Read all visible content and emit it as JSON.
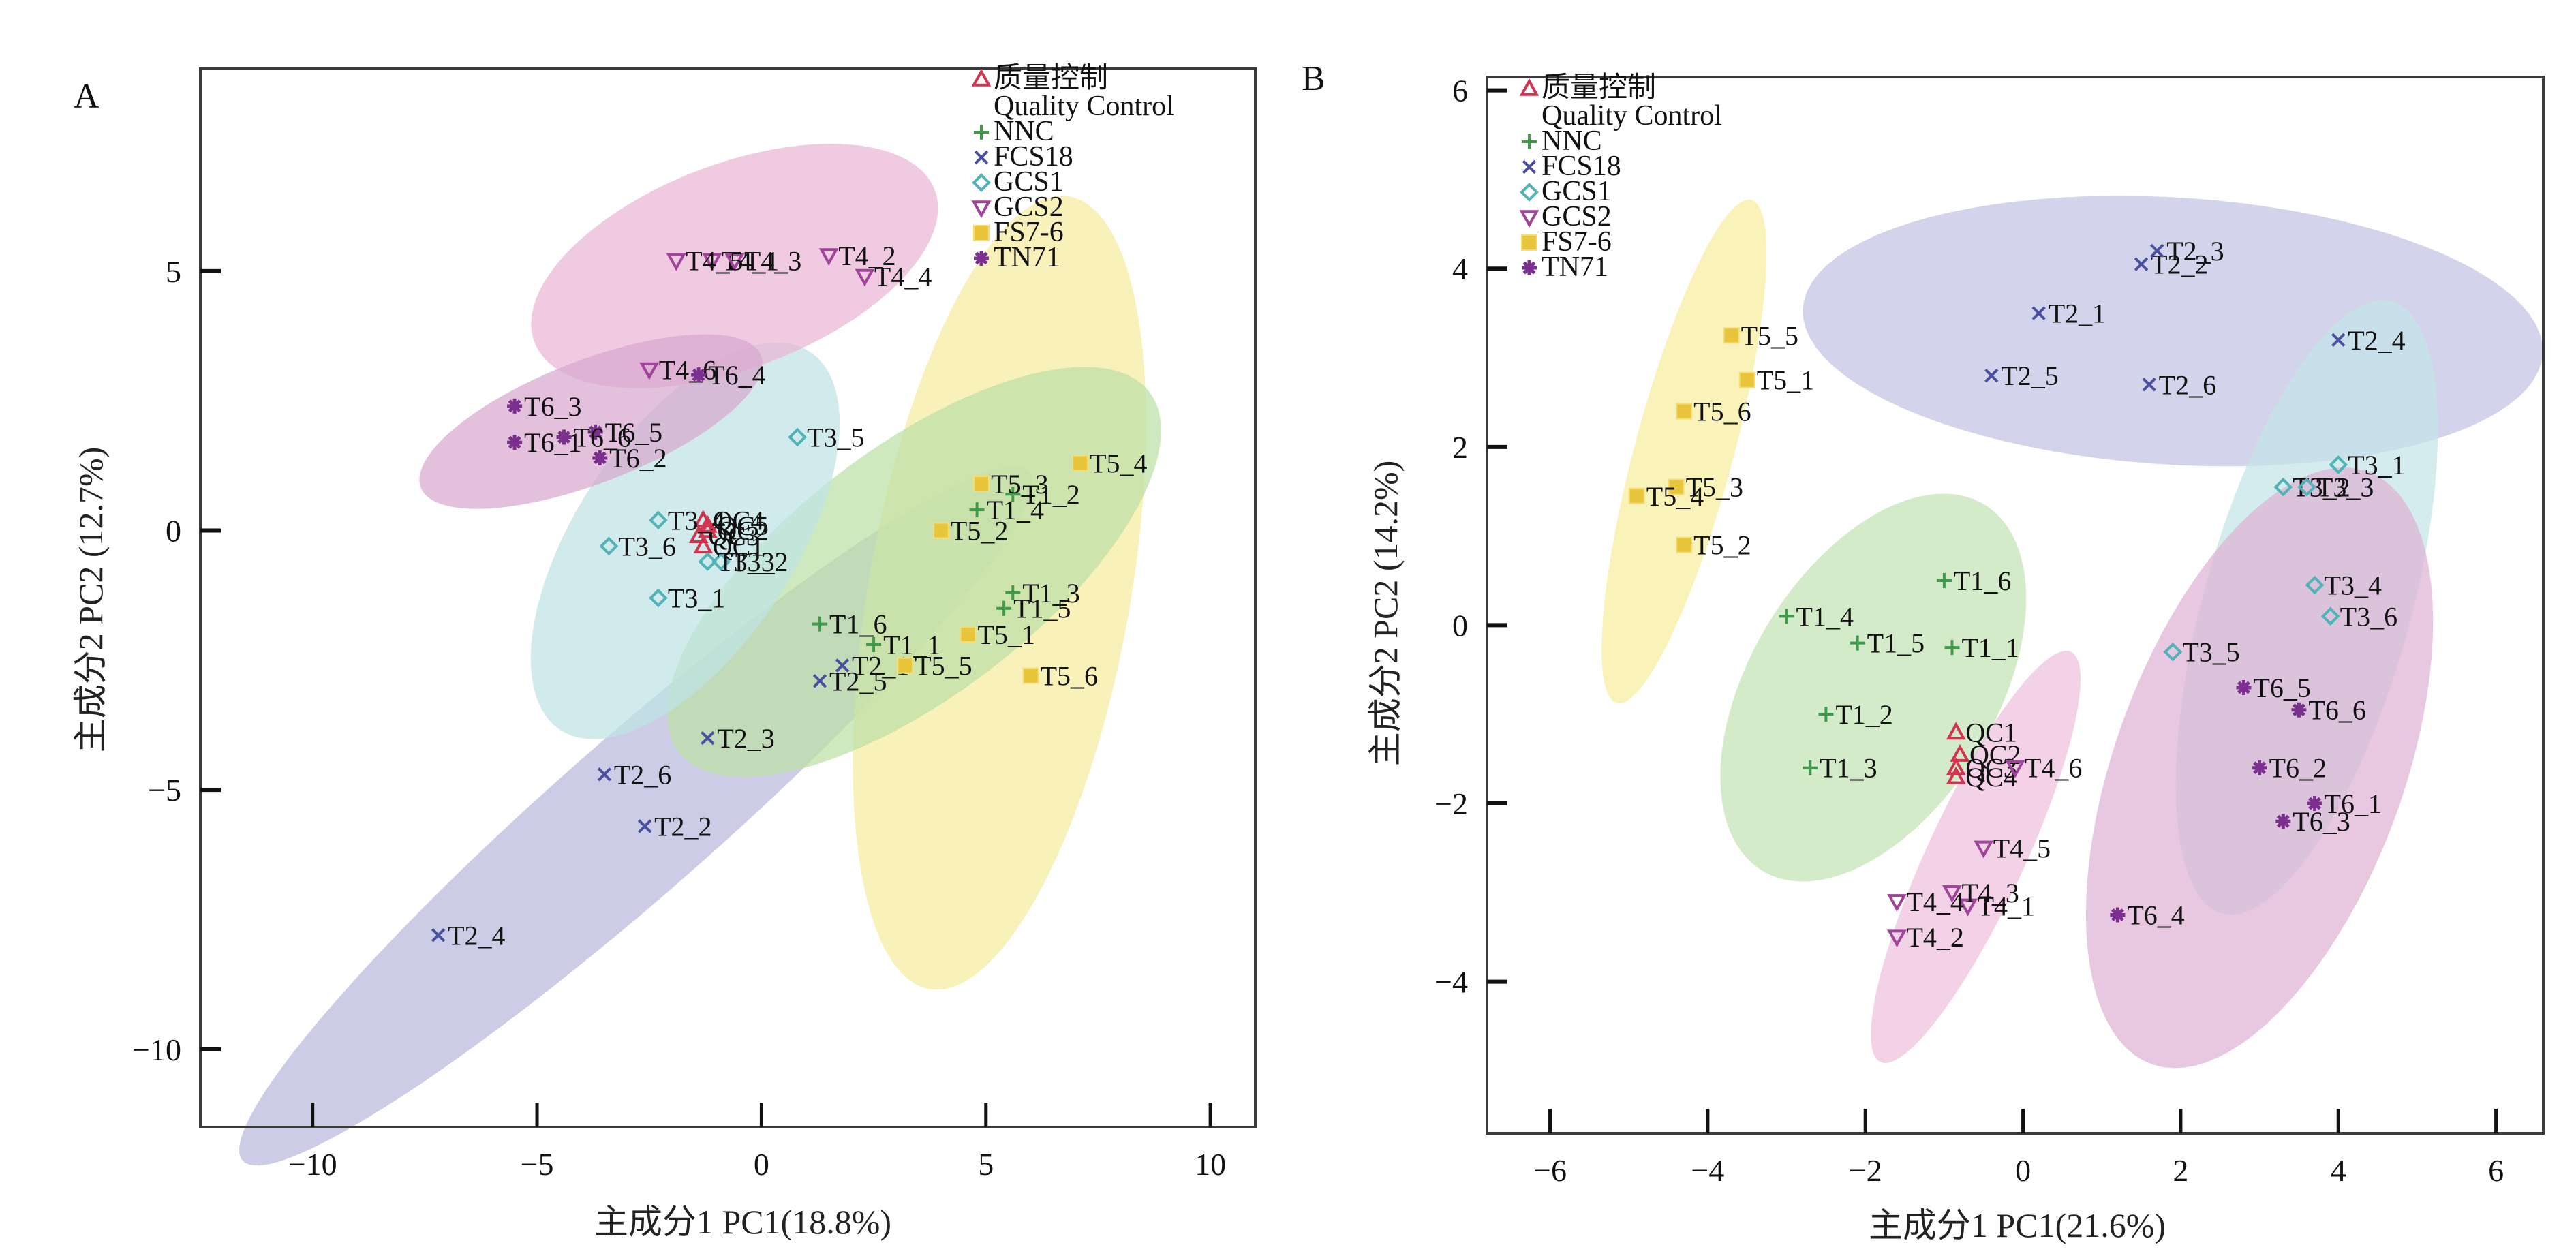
{
  "chart_data": [
    {
      "panel": "A",
      "type": "scatter",
      "title": "",
      "xlabel": "主成分1 PC1(18.8%)",
      "ylabel": "主成分2 PC2 (12.7%)",
      "xlim": [
        -12.5,
        11.0
      ],
      "ylim": [
        -11.5,
        8.9
      ],
      "xticks": [
        -10,
        -5,
        0,
        5,
        10
      ],
      "xtick_labels": [
        "−10",
        "−5",
        "0",
        "5",
        "10"
      ],
      "yticks": [
        5,
        0,
        -5,
        -10
      ],
      "ytick_labels": [
        "5",
        "0",
        "−5",
        "−10"
      ],
      "grid": false,
      "legend_position": "top-right",
      "series": [
        {
          "name": "质量控制 Quality Control",
          "marker": "triangle-up",
          "color": "#d0344f",
          "points": [
            {
              "label": "QC1",
              "x": -1.3,
              "y": -0.3
            },
            {
              "label": "QC2",
              "x": -1.2,
              "y": 0.0
            },
            {
              "label": "QC3",
              "x": -1.4,
              "y": -0.1
            },
            {
              "label": "QC4",
              "x": -1.3,
              "y": 0.2
            },
            {
              "label": "QC5",
              "x": -1.2,
              "y": 0.1
            }
          ]
        },
        {
          "name": "NNC",
          "marker": "plus",
          "color": "#3f9a4a",
          "points": [
            {
              "label": "T1_1",
              "x": 2.5,
              "y": -2.2
            },
            {
              "label": "T1_2",
              "x": 5.6,
              "y": 0.7
            },
            {
              "label": "T1_3",
              "x": 5.6,
              "y": -1.2
            },
            {
              "label": "T1_4",
              "x": 4.8,
              "y": 0.4
            },
            {
              "label": "T1_5",
              "x": 5.4,
              "y": -1.5
            },
            {
              "label": "T1_6",
              "x": 1.3,
              "y": -1.8
            }
          ]
        },
        {
          "name": "FCS18",
          "marker": "x",
          "color": "#4a4fa0",
          "points": [
            {
              "label": "T2_1",
              "x": 1.8,
              "y": -2.6
            },
            {
              "label": "T2_2",
              "x": -2.6,
              "y": -5.7
            },
            {
              "label": "T2_3",
              "x": -1.2,
              "y": -4.0
            },
            {
              "label": "T2_4",
              "x": -7.2,
              "y": -7.8
            },
            {
              "label": "T2_5",
              "x": 1.3,
              "y": -2.9
            },
            {
              "label": "T2_6",
              "x": -3.5,
              "y": -4.7
            }
          ]
        },
        {
          "name": "GCS1",
          "marker": "diamond",
          "color": "#4fb3b8",
          "points": [
            {
              "label": "T3_1",
              "x": -2.3,
              "y": -1.3
            },
            {
              "label": "T3_2",
              "x": -0.9,
              "y": -0.6
            },
            {
              "label": "T3_3",
              "x": -1.2,
              "y": -0.6
            },
            {
              "label": "T3_4",
              "x": -2.3,
              "y": 0.2
            },
            {
              "label": "T3_5",
              "x": 0.8,
              "y": 1.8
            },
            {
              "label": "T3_6",
              "x": -3.4,
              "y": -0.3
            }
          ]
        },
        {
          "name": "GCS2",
          "marker": "triangle-down",
          "color": "#a0449a",
          "points": [
            {
              "label": "T4_1",
              "x": -1.1,
              "y": 5.2
            },
            {
              "label": "T4_2",
              "x": 1.5,
              "y": 5.3
            },
            {
              "label": "T4_3",
              "x": -0.6,
              "y": 5.2
            },
            {
              "label": "T4_4",
              "x": 2.3,
              "y": 4.9
            },
            {
              "label": "T4_5",
              "x": -1.9,
              "y": 5.2
            },
            {
              "label": "T4_6",
              "x": -2.5,
              "y": 3.1
            }
          ]
        },
        {
          "name": "FS7-6",
          "marker": "square",
          "color": "#e8c53a",
          "points": [
            {
              "label": "T5_1",
              "x": 4.6,
              "y": -2.0
            },
            {
              "label": "T5_2",
              "x": 4.0,
              "y": 0.0
            },
            {
              "label": "T5_3",
              "x": 4.9,
              "y": 0.9
            },
            {
              "label": "T5_4",
              "x": 7.1,
              "y": 1.3
            },
            {
              "label": "T5_5",
              "x": 3.2,
              "y": -2.6
            },
            {
              "label": "T5_6",
              "x": 6.0,
              "y": -2.8
            }
          ]
        },
        {
          "name": "TN71",
          "marker": "star",
          "color": "#7b2f8e",
          "points": [
            {
              "label": "T6_1",
              "x": -5.5,
              "y": 1.7
            },
            {
              "label": "T6_2",
              "x": -3.6,
              "y": 1.4
            },
            {
              "label": "T6_3",
              "x": -5.5,
              "y": 2.4
            },
            {
              "label": "T6_4",
              "x": -1.4,
              "y": 3.0
            },
            {
              "label": "T6_5",
              "x": -3.7,
              "y": 1.9
            },
            {
              "label": "T6_6",
              "x": -4.4,
              "y": 1.8
            }
          ]
        }
      ],
      "ellipses": [
        {
          "group": "FCS18",
          "cx": -2.8,
          "cy": -5.5,
          "rx": 11.0,
          "ry": 1.6,
          "angle": 37,
          "color": "#b8b8dc"
        },
        {
          "group": "FS7-6",
          "cx": 5.3,
          "cy": -1.2,
          "rx": 7.8,
          "ry": 2.9,
          "angle": 78,
          "color": "#f5ec9f"
        },
        {
          "group": "NNC",
          "cx": 3.4,
          "cy": -0.8,
          "rx": 6.3,
          "ry": 2.5,
          "angle": 32,
          "color": "#bde0a6"
        },
        {
          "group": "GCS1",
          "cx": -1.7,
          "cy": -0.2,
          "rx": 4.6,
          "ry": 2.3,
          "angle": 50,
          "color": "#bfe3e5"
        },
        {
          "group": "GCS2",
          "cx": -0.6,
          "cy": 5.1,
          "rx": 4.7,
          "ry": 2.0,
          "angle": 17,
          "color": "#e9b6d5"
        },
        {
          "group": "TN71",
          "cx": -3.8,
          "cy": 2.1,
          "rx": 4.0,
          "ry": 1.2,
          "angle": 18,
          "color": "#d8a7cf"
        }
      ]
    },
    {
      "panel": "B",
      "type": "scatter",
      "title": "",
      "xlabel": "主成分1 PC1(21.6%)",
      "ylabel": "主成分2 PC2 (14.2%)",
      "xlim": [
        -6.8,
        6.6
      ],
      "ylim": [
        -5.7,
        6.15
      ],
      "xticks": [
        -6,
        -4,
        -2,
        0,
        2,
        4,
        6
      ],
      "xtick_labels": [
        "−6",
        "−4",
        "−2",
        "0",
        "2",
        "4",
        "6"
      ],
      "yticks": [
        6,
        4,
        2,
        0,
        -2,
        -4
      ],
      "ytick_labels": [
        "6",
        "4",
        "2",
        "0",
        "−2",
        "−4"
      ],
      "grid": false,
      "legend_position": "top-left",
      "series": [
        {
          "name": "质量控制 Quality Control",
          "marker": "triangle-up",
          "color": "#d0344f",
          "points": [
            {
              "label": "QC1",
              "x": -0.85,
              "y": -1.2
            },
            {
              "label": "QC2",
              "x": -0.8,
              "y": -1.45
            },
            {
              "label": "QC3",
              "x": -0.85,
              "y": -1.6
            },
            {
              "label": "QC4",
              "x": -0.85,
              "y": -1.7
            }
          ]
        },
        {
          "name": "NNC",
          "marker": "plus",
          "color": "#3f9a4a",
          "points": [
            {
              "label": "T1_1",
              "x": -0.9,
              "y": -0.25
            },
            {
              "label": "T1_2",
              "x": -2.5,
              "y": -1.0
            },
            {
              "label": "T1_3",
              "x": -2.7,
              "y": -1.6
            },
            {
              "label": "T1_4",
              "x": -3.0,
              "y": 0.1
            },
            {
              "label": "T1_5",
              "x": -2.1,
              "y": -0.2
            },
            {
              "label": "T1_6",
              "x": -1.0,
              "y": 0.5
            }
          ]
        },
        {
          "name": "FCS18",
          "marker": "x",
          "color": "#4a4fa0",
          "points": [
            {
              "label": "T2_1",
              "x": 0.2,
              "y": 3.5
            },
            {
              "label": "T2_2",
              "x": 1.5,
              "y": 4.05
            },
            {
              "label": "T2_3",
              "x": 1.7,
              "y": 4.2
            },
            {
              "label": "T2_4",
              "x": 4.0,
              "y": 3.2
            },
            {
              "label": "T2_5",
              "x": -0.4,
              "y": 2.8
            },
            {
              "label": "T2_6",
              "x": 1.6,
              "y": 2.7
            }
          ]
        },
        {
          "name": "GCS1",
          "marker": "diamond",
          "color": "#4fb3b8",
          "points": [
            {
              "label": "T3_1",
              "x": 4.0,
              "y": 1.8
            },
            {
              "label": "T3_2",
              "x": 3.3,
              "y": 1.55
            },
            {
              "label": "T3_3",
              "x": 3.6,
              "y": 1.55
            },
            {
              "label": "T3_4",
              "x": 3.7,
              "y": 0.45
            },
            {
              "label": "T3_5",
              "x": 1.9,
              "y": -0.3
            },
            {
              "label": "T3_6",
              "x": 3.9,
              "y": 0.1
            }
          ]
        },
        {
          "name": "GCS2",
          "marker": "triangle-down",
          "color": "#a0449a",
          "points": [
            {
              "label": "T4_1",
              "x": -0.7,
              "y": -3.15
            },
            {
              "label": "T4_2",
              "x": -1.6,
              "y": -3.5
            },
            {
              "label": "T4_3",
              "x": -0.9,
              "y": -3.0
            },
            {
              "label": "T4_4",
              "x": -1.6,
              "y": -3.1
            },
            {
              "label": "T4_5",
              "x": -0.5,
              "y": -2.5
            },
            {
              "label": "T4_6",
              "x": -0.1,
              "y": -1.6
            }
          ]
        },
        {
          "name": "FS7-6",
          "marker": "square",
          "color": "#e8c53a",
          "points": [
            {
              "label": "T5_1",
              "x": -3.5,
              "y": 2.75
            },
            {
              "label": "T5_2",
              "x": -4.3,
              "y": 0.9
            },
            {
              "label": "T5_3",
              "x": -4.4,
              "y": 1.55
            },
            {
              "label": "T5_4",
              "x": -4.9,
              "y": 1.45
            },
            {
              "label": "T5_5",
              "x": -3.7,
              "y": 3.25
            },
            {
              "label": "T5_6",
              "x": -4.3,
              "y": 2.4
            }
          ]
        },
        {
          "name": "TN71",
          "marker": "star",
          "color": "#7b2f8e",
          "points": [
            {
              "label": "T6_1",
              "x": 3.7,
              "y": -2.0
            },
            {
              "label": "T6_2",
              "x": 3.0,
              "y": -1.6
            },
            {
              "label": "T6_3",
              "x": 3.3,
              "y": -2.2
            },
            {
              "label": "T6_4",
              "x": 1.2,
              "y": -3.25
            },
            {
              "label": "T6_5",
              "x": 2.8,
              "y": -0.7
            },
            {
              "label": "T6_6",
              "x": 3.5,
              "y": -0.95
            }
          ]
        }
      ],
      "ellipses": [
        {
          "group": "FCS18",
          "cx": 1.9,
          "cy": 3.3,
          "rx": 4.7,
          "ry": 1.5,
          "angle": -3,
          "color": "#c2c2e3"
        },
        {
          "group": "FS7-6",
          "cx": -4.3,
          "cy": 1.95,
          "rx": 2.95,
          "ry": 0.62,
          "angle": 73,
          "color": "#f7ef9e"
        },
        {
          "group": "NNC",
          "cx": -1.9,
          "cy": -0.7,
          "rx": 2.5,
          "ry": 1.5,
          "angle": 52,
          "color": "#c4e3b5"
        },
        {
          "group": "GCS1",
          "cx": 3.6,
          "cy": 0.2,
          "rx": 3.6,
          "ry": 1.3,
          "angle": 72,
          "color": "#c4e5e8"
        },
        {
          "group": "GCS2",
          "cx": -0.6,
          "cy": -2.6,
          "rx": 2.6,
          "ry": 0.6,
          "angle": 62,
          "color": "#efbfdd"
        },
        {
          "group": "TN71",
          "cx": 3.0,
          "cy": -1.6,
          "rx": 3.6,
          "ry": 1.8,
          "angle": 66,
          "color": "#dfb3d6"
        }
      ]
    }
  ],
  "panels": [
    {
      "letter": "A",
      "legend": {
        "qc_cn": "质量控制",
        "qc_en": "Quality Control",
        "items": [
          "NNC",
          "FCS18",
          "GCS1",
          "GCS2",
          "FS7-6",
          "TN71"
        ]
      }
    },
    {
      "letter": "B",
      "legend": {
        "qc_cn": "质量控制",
        "qc_en": "Quality Control",
        "items": [
          "NNC",
          "FCS18",
          "GCS1",
          "GCS2",
          "FS7-6",
          "TN71"
        ]
      }
    }
  ]
}
